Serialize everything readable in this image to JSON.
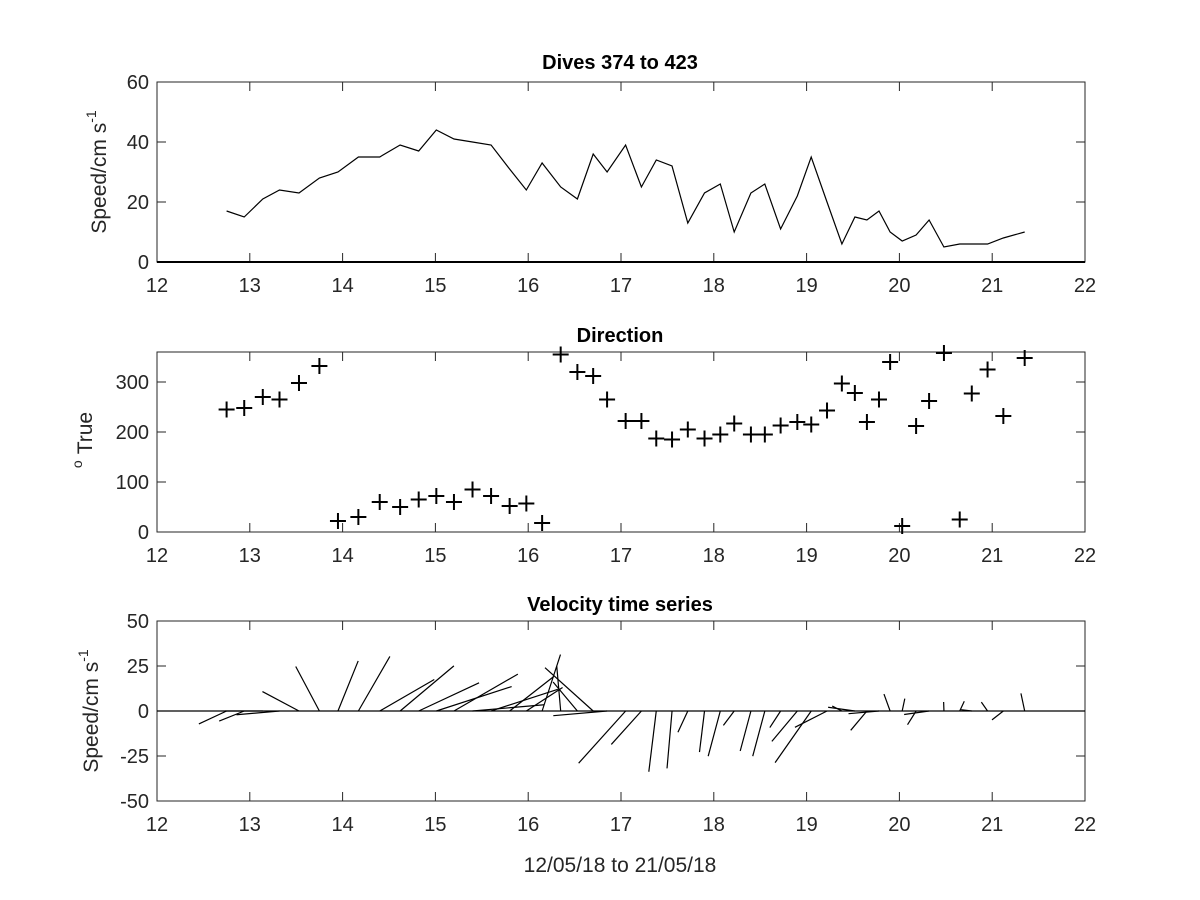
{
  "chart_data": [
    {
      "type": "line",
      "title": "Dives 374 to 423",
      "ylabel": {
        "base": "Speed/cm s",
        "superscript": "-1"
      },
      "xlabel": "",
      "xlim": [
        12,
        22
      ],
      "ylim": [
        0,
        60
      ],
      "xticks": [
        "12",
        "13",
        "14",
        "15",
        "16",
        "17",
        "18",
        "19",
        "20",
        "21",
        "22"
      ],
      "yticks": [
        "0",
        "20",
        "40",
        "60"
      ],
      "grid": false,
      "x": [
        12.75,
        12.94,
        13.14,
        13.32,
        13.53,
        13.75,
        13.95,
        14.17,
        14.4,
        14.62,
        14.82,
        15.01,
        15.2,
        15.4,
        15.6,
        15.8,
        15.98,
        16.15,
        16.35,
        16.53,
        16.7,
        16.85,
        17.05,
        17.22,
        17.38,
        17.55,
        17.72,
        17.9,
        18.07,
        18.22,
        18.4,
        18.55,
        18.72,
        18.9,
        19.05,
        19.22,
        19.38,
        19.52,
        19.65,
        19.78,
        19.9,
        20.03,
        20.18,
        20.32,
        20.48,
        20.65,
        20.78,
        20.95,
        21.12,
        21.35
      ],
      "y": [
        17,
        15,
        21,
        24,
        23,
        28,
        30,
        35,
        35,
        39,
        37,
        44,
        41,
        40,
        39,
        31,
        24,
        33,
        25,
        21,
        36,
        30,
        39,
        25,
        34,
        32,
        13,
        23,
        26,
        10,
        23,
        26,
        11,
        22,
        35,
        20,
        6,
        15,
        14,
        17,
        10,
        7,
        9,
        14,
        5,
        6,
        6,
        6,
        8,
        10
      ],
      "color": "#000000"
    },
    {
      "type": "scatter",
      "title": "Direction",
      "ylabel": {
        "base": "True",
        "superscript": "o"
      },
      "xlabel": "",
      "xlim": [
        12,
        22
      ],
      "ylim": [
        0,
        360
      ],
      "xticks": [
        "12",
        "13",
        "14",
        "15",
        "16",
        "17",
        "18",
        "19",
        "20",
        "21",
        "22"
      ],
      "yticks": [
        "0",
        "100",
        "200",
        "300"
      ],
      "grid": false,
      "marker": "plus",
      "x": [
        12.75,
        12.94,
        13.14,
        13.32,
        13.53,
        13.75,
        13.95,
        14.17,
        14.4,
        14.62,
        14.82,
        15.01,
        15.2,
        15.4,
        15.6,
        15.8,
        15.98,
        16.15,
        16.35,
        16.53,
        16.7,
        16.85,
        17.05,
        17.22,
        17.38,
        17.55,
        17.72,
        17.9,
        18.07,
        18.22,
        18.4,
        18.55,
        18.72,
        18.9,
        19.05,
        19.22,
        19.38,
        19.52,
        19.65,
        19.78,
        19.9,
        20.03,
        20.18,
        20.32,
        20.48,
        20.65,
        20.78,
        20.95,
        21.12,
        21.35
      ],
      "y": [
        245,
        248,
        270,
        265,
        298,
        332,
        22,
        30,
        60,
        50,
        65,
        72,
        60,
        85,
        72,
        52,
        57,
        18,
        355,
        320,
        312,
        265,
        222,
        222,
        187,
        185,
        205,
        187,
        195,
        217,
        195,
        195,
        213,
        220,
        215,
        243,
        297,
        278,
        220,
        265,
        340,
        12,
        212,
        262,
        358,
        25,
        277,
        325,
        232,
        348
      ],
      "color": "#000000"
    },
    {
      "type": "line",
      "subtype": "stick-plot",
      "title": "Velocity time series",
      "ylabel": {
        "base": "Speed/cm s",
        "superscript": "-1"
      },
      "xlabel": "12/05/18 to 21/05/18",
      "xlim": [
        12,
        22
      ],
      "ylim": [
        -50,
        50
      ],
      "xticks": [
        "12",
        "13",
        "14",
        "15",
        "16",
        "17",
        "18",
        "19",
        "20",
        "21",
        "22"
      ],
      "yticks": [
        "-50",
        "-25",
        "0",
        "25",
        "50"
      ],
      "grid": false,
      "x": [
        12.75,
        12.94,
        13.14,
        13.32,
        13.53,
        13.75,
        13.95,
        14.17,
        14.4,
        14.62,
        14.82,
        15.01,
        15.2,
        15.4,
        15.6,
        15.8,
        15.98,
        16.15,
        16.35,
        16.53,
        16.7,
        16.85,
        17.05,
        17.22,
        17.38,
        17.55,
        17.72,
        17.9,
        18.07,
        18.22,
        18.4,
        18.55,
        18.72,
        18.9,
        19.05,
        19.22,
        19.38,
        19.52,
        19.65,
        19.78,
        19.9,
        20.03,
        20.18,
        20.32,
        20.48,
        20.65,
        20.78,
        20.95,
        21.12,
        21.35
      ],
      "speed": [
        17,
        15,
        21,
        24,
        23,
        28,
        30,
        35,
        35,
        39,
        37,
        44,
        41,
        40,
        39,
        31,
        24,
        33,
        25,
        21,
        36,
        30,
        39,
        25,
        34,
        32,
        13,
        23,
        26,
        10,
        23,
        26,
        11,
        22,
        35,
        20,
        6,
        15,
        14,
        17,
        10,
        7,
        9,
        14,
        5,
        6,
        6,
        6,
        8,
        10
      ],
      "direction_deg": [
        245,
        248,
        270,
        265,
        298,
        332,
        22,
        30,
        60,
        50,
        65,
        72,
        60,
        85,
        72,
        52,
        57,
        18,
        355,
        320,
        312,
        265,
        222,
        222,
        187,
        185,
        205,
        187,
        195,
        217,
        195,
        195,
        213,
        220,
        215,
        243,
        297,
        278,
        220,
        265,
        340,
        12,
        212,
        262,
        358,
        25,
        277,
        325,
        232,
        348
      ],
      "color": "#000000"
    }
  ]
}
